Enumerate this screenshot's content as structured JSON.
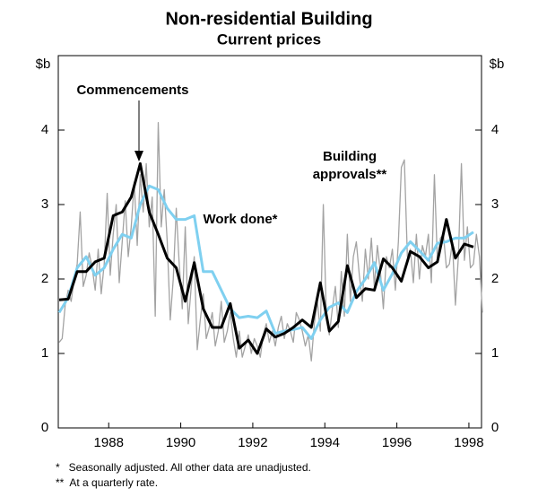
{
  "chart_data": {
    "type": "line",
    "title": "Non-residential Building",
    "subtitle": "Current prices",
    "y_label": "$b",
    "y2_label": "$b",
    "xlim": [
      1986.6,
      1998.35
    ],
    "xticks": [
      1988,
      1990,
      1992,
      1994,
      1996,
      1998
    ],
    "ylim": [
      0,
      5
    ],
    "yticks": [
      0,
      1,
      2,
      3,
      4
    ],
    "y2lim": [
      0,
      5
    ],
    "y2ticks": [
      0,
      1,
      2,
      3,
      4
    ],
    "grid": false,
    "annotations": [
      "Commencements",
      "Work done*",
      "Building",
      "approvals**"
    ],
    "notes": [
      "*   Seasonally adjusted. All other data are unadjusted.",
      "**  At a quarterly rate."
    ],
    "series": [
      {
        "name": "Building approvals",
        "color": "#a3a3a3",
        "x": [
          1986.625,
          1986.708,
          1986.792,
          1986.875,
          1986.958,
          1987.042,
          1987.125,
          1987.208,
          1987.292,
          1987.375,
          1987.458,
          1987.542,
          1987.625,
          1987.708,
          1987.792,
          1987.875,
          1987.958,
          1988.042,
          1988.125,
          1988.208,
          1988.292,
          1988.375,
          1988.458,
          1988.542,
          1988.625,
          1988.708,
          1988.792,
          1988.875,
          1988.958,
          1989.042,
          1989.125,
          1989.208,
          1989.292,
          1989.375,
          1989.458,
          1989.542,
          1989.625,
          1989.708,
          1989.792,
          1989.875,
          1989.958,
          1990.042,
          1990.125,
          1990.208,
          1990.292,
          1990.375,
          1990.458,
          1990.542,
          1990.625,
          1990.708,
          1990.792,
          1990.875,
          1990.958,
          1991.042,
          1991.125,
          1991.208,
          1991.292,
          1991.375,
          1991.458,
          1991.542,
          1991.625,
          1991.708,
          1991.792,
          1991.875,
          1991.958,
          1992.042,
          1992.125,
          1992.208,
          1992.292,
          1992.375,
          1992.458,
          1992.542,
          1992.625,
          1992.708,
          1992.792,
          1992.875,
          1992.958,
          1993.042,
          1993.125,
          1993.208,
          1993.292,
          1993.375,
          1993.458,
          1993.542,
          1993.625,
          1993.708,
          1993.792,
          1993.875,
          1993.958,
          1994.042,
          1994.125,
          1994.208,
          1994.292,
          1994.375,
          1994.458,
          1994.542,
          1994.625,
          1994.708,
          1994.792,
          1994.875,
          1994.958,
          1995.042,
          1995.125,
          1995.208,
          1995.292,
          1995.375,
          1995.458,
          1995.542,
          1995.625,
          1995.708,
          1995.792,
          1995.875,
          1995.958,
          1996.042,
          1996.125,
          1996.208,
          1996.292,
          1996.375,
          1996.458,
          1996.542,
          1996.625,
          1996.708,
          1996.792,
          1996.875,
          1996.958,
          1997.042,
          1997.125,
          1997.208,
          1997.292,
          1997.375,
          1997.458,
          1997.542,
          1997.625,
          1997.708,
          1997.792,
          1997.875,
          1997.958,
          1998.042,
          1998.125,
          1998.208,
          1998.292,
          1998.375
        ],
        "values": [
          1.15,
          1.2,
          1.65,
          1.85,
          1.7,
          2.0,
          2.2,
          2.9,
          1.9,
          2.05,
          2.35,
          2.15,
          1.85,
          2.4,
          1.8,
          2.2,
          3.15,
          2.05,
          2.6,
          3.0,
          1.95,
          2.5,
          3.05,
          2.3,
          2.7,
          3.3,
          2.45,
          3.4,
          2.9,
          3.55,
          2.7,
          3.1,
          1.5,
          4.1,
          2.7,
          3.2,
          2.5,
          1.45,
          2.0,
          2.95,
          2.2,
          1.6,
          2.7,
          1.4,
          1.9,
          2.3,
          1.05,
          1.45,
          1.8,
          1.2,
          1.35,
          1.55,
          1.1,
          1.3,
          1.7,
          1.15,
          1.3,
          1.55,
          1.2,
          0.95,
          1.3,
          0.95,
          1.1,
          1.25,
          1.0,
          1.2,
          1.1,
          0.95,
          1.25,
          1.4,
          1.15,
          1.3,
          1.1,
          1.35,
          1.5,
          1.2,
          1.4,
          1.3,
          1.15,
          1.55,
          1.45,
          1.3,
          1.1,
          1.25,
          0.9,
          1.4,
          1.7,
          1.3,
          3.0,
          1.5,
          1.25,
          1.6,
          1.9,
          1.35,
          2.1,
          1.5,
          2.6,
          1.7,
          2.3,
          2.5,
          2.05,
          1.7,
          2.4,
          2.0,
          2.55,
          1.9,
          2.45,
          2.1,
          1.6,
          2.3,
          2.15,
          2.4,
          1.85,
          2.5,
          3.5,
          3.6,
          2.3,
          2.4,
          1.95,
          2.6,
          2.0,
          2.45,
          2.3,
          2.6,
          1.95,
          3.4,
          2.25,
          2.55,
          2.6,
          2.15,
          2.2,
          2.5,
          1.65,
          2.3,
          3.55,
          2.25,
          2.7,
          2.15,
          2.2,
          2.6,
          2.3,
          1.55
        ]
      },
      {
        "name": "Work done",
        "color": "#7fd0f0",
        "x": [
          1986.625,
          1986.875,
          1987.125,
          1987.375,
          1987.625,
          1987.875,
          1988.125,
          1988.375,
          1988.625,
          1988.875,
          1989.125,
          1989.375,
          1989.625,
          1989.875,
          1990.125,
          1990.375,
          1990.625,
          1990.875,
          1991.125,
          1991.375,
          1991.625,
          1991.875,
          1992.125,
          1992.375,
          1992.625,
          1992.875,
          1993.125,
          1993.375,
          1993.625,
          1993.875,
          1994.125,
          1994.375,
          1994.625,
          1994.875,
          1995.125,
          1995.375,
          1995.625,
          1995.875,
          1996.125,
          1996.375,
          1996.625,
          1996.875,
          1997.125,
          1997.375,
          1997.625,
          1997.875,
          1998.125
        ],
        "values": [
          1.55,
          1.75,
          2.15,
          2.3,
          2.05,
          2.15,
          2.4,
          2.6,
          2.55,
          3.0,
          3.25,
          3.2,
          2.95,
          2.8,
          2.8,
          2.85,
          2.1,
          2.1,
          1.85,
          1.6,
          1.48,
          1.5,
          1.48,
          1.57,
          1.27,
          1.3,
          1.32,
          1.35,
          1.2,
          1.45,
          1.62,
          1.68,
          1.55,
          1.83,
          2.0,
          2.22,
          1.85,
          2.07,
          2.35,
          2.5,
          2.38,
          2.25,
          2.48,
          2.5,
          2.55,
          2.55,
          2.63
        ]
      },
      {
        "name": "Commencements",
        "color": "#000000",
        "x": [
          1986.625,
          1986.875,
          1987.125,
          1987.375,
          1987.625,
          1987.875,
          1988.125,
          1988.375,
          1988.625,
          1988.875,
          1989.125,
          1989.375,
          1989.625,
          1989.875,
          1990.125,
          1990.375,
          1990.625,
          1990.875,
          1991.125,
          1991.375,
          1991.625,
          1991.875,
          1992.125,
          1992.375,
          1992.625,
          1992.875,
          1993.125,
          1993.375,
          1993.625,
          1993.875,
          1994.125,
          1994.375,
          1994.625,
          1994.875,
          1995.125,
          1995.375,
          1995.625,
          1995.875,
          1996.125,
          1996.375,
          1996.625,
          1996.875,
          1997.125,
          1997.375,
          1997.625,
          1997.875,
          1998.125
        ],
        "values": [
          1.72,
          1.73,
          2.1,
          2.1,
          2.23,
          2.28,
          2.85,
          2.9,
          3.1,
          3.55,
          2.9,
          2.6,
          2.28,
          2.15,
          1.7,
          2.22,
          1.6,
          1.35,
          1.35,
          1.67,
          1.07,
          1.18,
          1.0,
          1.33,
          1.22,
          1.27,
          1.35,
          1.45,
          1.35,
          1.95,
          1.3,
          1.43,
          2.18,
          1.75,
          1.87,
          1.85,
          2.27,
          2.15,
          1.97,
          2.37,
          2.3,
          2.15,
          2.23,
          2.8,
          2.28,
          2.47,
          2.43
        ]
      }
    ]
  }
}
